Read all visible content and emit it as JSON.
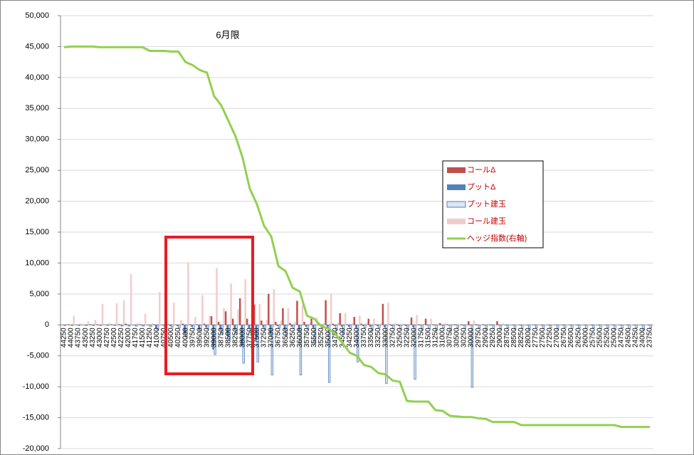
{
  "chart_data": {
    "type": "bar",
    "title": "6月限",
    "categories": [
      "44250",
      "44000",
      "43750",
      "43500",
      "43250",
      "43000",
      "42750",
      "42500",
      "42250",
      "42000",
      "41750",
      "41500",
      "41250",
      "41000",
      "40750",
      "40500",
      "40250",
      "40000",
      "39750",
      "39500",
      "39250",
      "39000",
      "38750",
      "38500",
      "38250",
      "38000",
      "37750",
      "37500",
      "37250",
      "37000",
      "36750",
      "36500",
      "36250",
      "36000",
      "35750",
      "35500",
      "35250",
      "35000",
      "34750",
      "34500",
      "34250",
      "34000",
      "33750",
      "33500",
      "33250",
      "33000",
      "32750",
      "32500",
      "32250",
      "32000",
      "31750",
      "31500",
      "31250",
      "31000",
      "30750",
      "30500",
      "30250",
      "30000",
      "29750",
      "29500",
      "29250",
      "29000",
      "28750",
      "28500",
      "28250",
      "28000",
      "27750",
      "27500",
      "27250",
      "27000",
      "26750",
      "26500",
      "26250",
      "26000",
      "25750",
      "25500",
      "25250",
      "25000",
      "24750",
      "24500",
      "24250",
      "24000",
      "23750"
    ],
    "series": [
      {
        "name": "コールΔ",
        "kind": "bar",
        "color": "#c0504d",
        "values": [
          0,
          100,
          0,
          0,
          100,
          100,
          0,
          100,
          100,
          200,
          0,
          100,
          0,
          100,
          0,
          100,
          0,
          200,
          100,
          100,
          200,
          1400,
          500,
          2200,
          1000,
          4300,
          1000,
          3300,
          700,
          5000,
          500,
          2700,
          300,
          3900,
          500,
          1000,
          100,
          4000,
          200,
          1900,
          100,
          1300,
          200,
          1000,
          100,
          3400,
          100,
          100,
          100,
          1200,
          100,
          1000,
          100,
          300,
          100,
          100,
          100,
          600,
          100,
          100,
          100,
          600,
          0,
          0,
          0,
          0,
          0,
          0,
          0,
          0,
          0,
          0,
          0,
          0,
          0,
          0,
          0,
          0,
          0,
          0,
          0,
          0,
          0
        ]
      },
      {
        "name": "プットΔ",
        "kind": "bar",
        "color": "#4f81bd",
        "values": [
          0,
          0,
          0,
          0,
          0,
          0,
          0,
          0,
          -100,
          -100,
          -100,
          -100,
          -100,
          -600,
          -100,
          -200,
          -200,
          -1500,
          -300,
          -800,
          -400,
          -4000,
          -800,
          -1800,
          -800,
          -3500,
          -500,
          -2500,
          -400,
          -1500,
          -200,
          -800,
          -300,
          -1000,
          -300,
          -500,
          -200,
          -500,
          -200,
          -300,
          -300,
          -500,
          -200,
          -300,
          -200,
          -400,
          -200,
          -200,
          -200,
          -400,
          -100,
          -100,
          -100,
          -100,
          -100,
          -100,
          -100,
          -100,
          -100,
          -100,
          -100,
          -100,
          -100,
          -100,
          -100,
          -100,
          -100,
          -100,
          -100,
          -100,
          -100,
          -100,
          -100,
          -100,
          -100,
          -100,
          -100,
          -100,
          -100,
          -100,
          -100,
          -100,
          -100
        ]
      },
      {
        "name": "プット建玉",
        "kind": "bar",
        "color": "#dce6f2",
        "border_color": "#4f81bd",
        "values": [
          -100,
          -100,
          -100,
          -100,
          -100,
          -100,
          -100,
          -100,
          -200,
          -200,
          -200,
          -200,
          -300,
          -800,
          -300,
          -400,
          -500,
          -2000,
          -600,
          -1000,
          -700,
          -4800,
          -1500,
          -2500,
          -1500,
          -6200,
          -1000,
          -6000,
          -800,
          -8100,
          -500,
          -1800,
          -600,
          -8100,
          -700,
          -3000,
          -500,
          -9300,
          -800,
          -1500,
          -600,
          -6000,
          -500,
          -1000,
          -500,
          -9500,
          -600,
          -700,
          -800,
          -8800,
          -800,
          -600,
          -900,
          -500,
          -1000,
          -500,
          -600,
          -10100,
          -500,
          -800,
          -600,
          -700,
          -500,
          -700,
          -600,
          -800,
          -500,
          -600,
          -500,
          -700,
          -500,
          -600,
          -500,
          -600,
          -500,
          -600,
          -500,
          -700,
          -500,
          -600,
          -500,
          -800,
          -500
        ]
      },
      {
        "name": "コール建玉",
        "kind": "bar",
        "color": "#f2cccc",
        "values": [
          200,
          1500,
          200,
          600,
          800,
          3400,
          300,
          3500,
          4000,
          8200,
          300,
          1800,
          300,
          5300,
          300,
          3600,
          800,
          10100,
          1300,
          4800,
          1500,
          9200,
          2700,
          6700,
          2500,
          7400,
          1500,
          3400,
          800,
          5800,
          700,
          2700,
          500,
          3200,
          300,
          1200,
          300,
          5000,
          300,
          1900,
          300,
          1500,
          300,
          1000,
          300,
          3600,
          300,
          200,
          300,
          1600,
          200,
          1000,
          200,
          300,
          200,
          100,
          200,
          700,
          100,
          200,
          100,
          300,
          100,
          100,
          100,
          100,
          100,
          100,
          100,
          100,
          100,
          100,
          100,
          100,
          100,
          100,
          100,
          100,
          100,
          100,
          100,
          100,
          100
        ]
      },
      {
        "name": "ヘッジ指数(右軸)",
        "kind": "line",
        "color": "#92d050",
        "values": [
          44900,
          45000,
          45000,
          45000,
          45000,
          44900,
          44900,
          44900,
          44900,
          44900,
          44900,
          44900,
          44300,
          44300,
          44300,
          44200,
          44200,
          42500,
          42000,
          41200,
          40800,
          37000,
          35500,
          33000,
          30500,
          27000,
          22000,
          19500,
          16000,
          14300,
          9500,
          8700,
          6000,
          5400,
          1500,
          1000,
          -200,
          -600,
          -1500,
          -3000,
          -4500,
          -5000,
          -6500,
          -6800,
          -7800,
          -8000,
          -9000,
          -9200,
          -12300,
          -12400,
          -12400,
          -12400,
          -13800,
          -13900,
          -14700,
          -14800,
          -14900,
          -14900,
          -15100,
          -15200,
          -15700,
          -15700,
          -15700,
          -15700,
          -16200,
          -16200,
          -16200,
          -16200,
          -16200,
          -16200,
          -16200,
          -16200,
          -16200,
          -16200,
          -16200,
          -16200,
          -16200,
          -16200,
          -16500,
          -16500,
          -16500,
          -16500,
          -16500
        ]
      }
    ],
    "ylim": [
      -20000,
      50000
    ],
    "yticks": [
      {
        "value": -20000,
        "label": "-20,000"
      },
      {
        "value": -15000,
        "label": "-15,000"
      },
      {
        "value": -10000,
        "label": "-10,000"
      },
      {
        "value": -5000,
        "label": "-5,000"
      },
      0,
      {
        "value": 5000,
        "label": "5,000"
      },
      {
        "value": 10000,
        "label": "10,000"
      },
      {
        "value": 15000,
        "label": "15,000"
      },
      {
        "value": 20000,
        "label": "20,000"
      },
      {
        "value": 25000,
        "label": "25,000"
      },
      {
        "value": 30000,
        "label": "30,000"
      },
      {
        "value": 35000,
        "label": "35,000"
      },
      {
        "value": 40000,
        "label": "40,000"
      },
      {
        "value": 45000,
        "label": "45,000"
      },
      {
        "value": 50000,
        "label": "50,000"
      }
    ],
    "grid": true,
    "legend": "right"
  }
}
